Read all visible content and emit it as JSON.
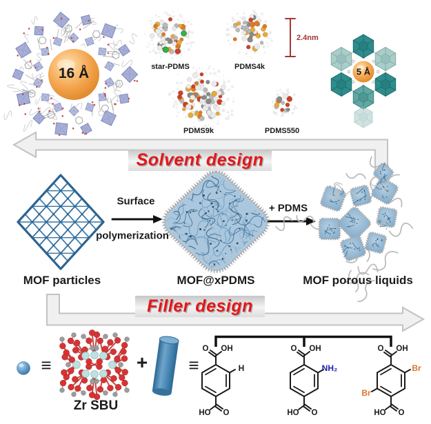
{
  "palette": {
    "accent_red": "#e41619",
    "scalebar_red": "#a83232",
    "pore_sphere_orange": "#f4a64f",
    "mof_blue": "#36739f",
    "teal_dark": "#2f8c8c",
    "lavender": "#a7afd6",
    "nh2_blue": "#2323b0",
    "br_orange": "#e0762a",
    "arrow_gray": "#f0f0f0"
  },
  "top_row": {
    "mof_16": {
      "pore_label": "16 Å"
    },
    "solvents": [
      {
        "name": "star-PDMS"
      },
      {
        "name": "PDMS4k"
      },
      {
        "name": "PDMS9k"
      },
      {
        "name": "PDMS550"
      }
    ],
    "scale_bar": {
      "label": "2.4nm"
    },
    "mof_5": {
      "pore_label": "5 Å"
    }
  },
  "banners": {
    "solvent": "Solvent design",
    "filler": "Filler design"
  },
  "process_row": {
    "arrow1_line1": "Surface",
    "arrow1_line2": "polymerization",
    "arrow2_label": "+ PDMS",
    "labels": [
      "MOF particles",
      "MOF@xPDMS",
      "MOF porous liquids"
    ]
  },
  "bottom_row": {
    "equiv_symbol": "≡",
    "plus_symbol": "+",
    "zr_label": "Zr SBU",
    "atom_labels": {
      "o": "O",
      "oh": "OH",
      "ho": "HO"
    },
    "linkers": [
      {
        "substituent_top": "H",
        "substituent_top_color": "#1a1a1a",
        "substituent_bottom": null
      },
      {
        "substituent_top": "NH₂",
        "substituent_top_color": "#2323b0",
        "substituent_bottom": null
      },
      {
        "substituent_top": "Br",
        "substituent_top_color": "#e0762a",
        "substituent_bottom": "Br",
        "substituent_bottom_color": "#e0762a"
      }
    ]
  }
}
